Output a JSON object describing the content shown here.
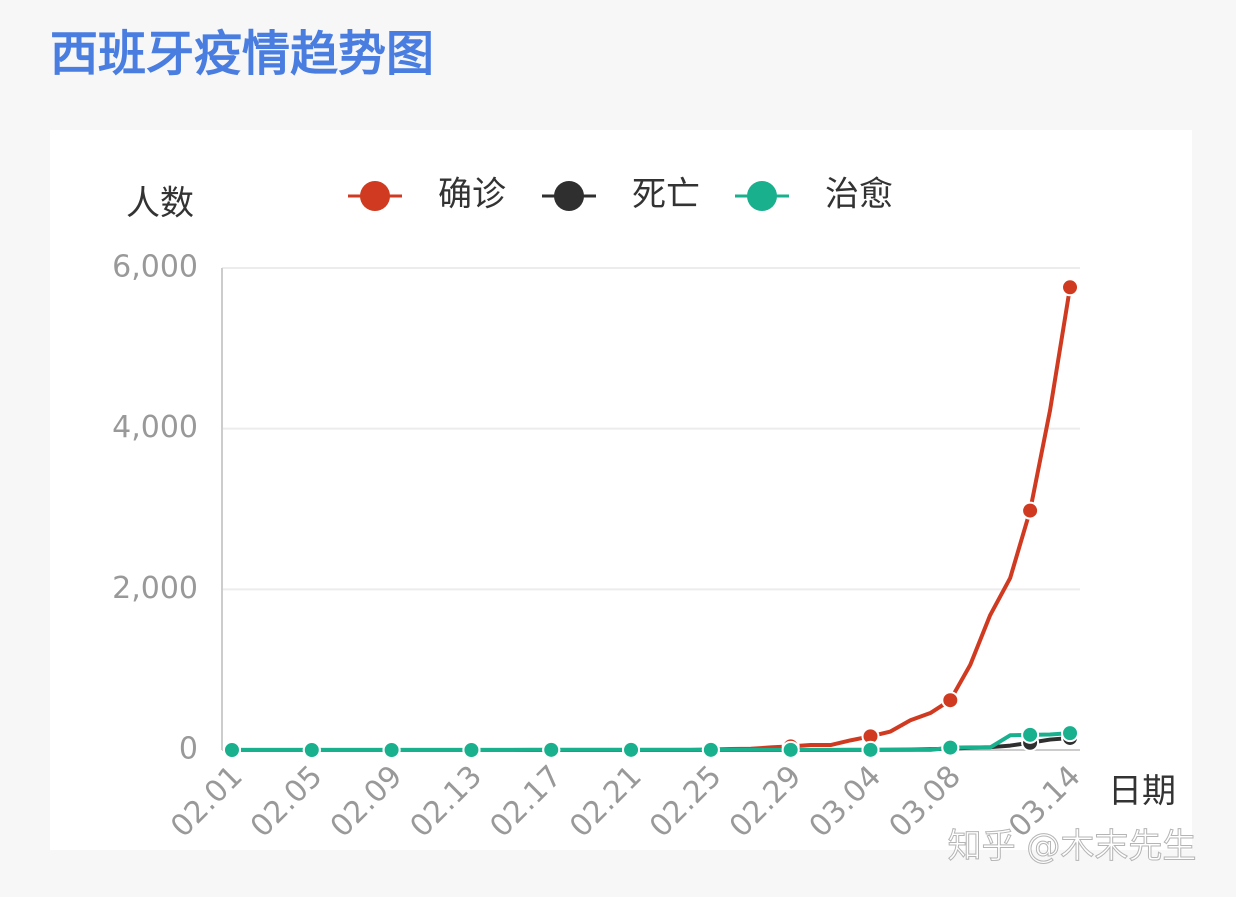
{
  "chart_data": {
    "type": "line",
    "title": "西班牙疫情趋势图",
    "y_axis_label": "人数",
    "x_axis_label": "日期",
    "watermark": "知乎 @木末先生",
    "categories": [
      "02.01",
      null,
      null,
      null,
      "02.05",
      null,
      null,
      null,
      "02.09",
      null,
      null,
      null,
      "02.13",
      null,
      null,
      null,
      "02.17",
      null,
      null,
      null,
      "02.21",
      null,
      null,
      null,
      "02.25",
      null,
      null,
      null,
      "02.29",
      null,
      null,
      null,
      "03.04",
      null,
      null,
      null,
      "03.08",
      null,
      null,
      null,
      null,
      null,
      "03.14"
    ],
    "series": [
      {
        "name": "确诊",
        "color": "#cf3a20",
        "values": [
          1,
          1,
          1,
          1,
          1,
          1,
          1,
          1,
          2,
          2,
          2,
          2,
          2,
          2,
          2,
          2,
          2,
          2,
          2,
          2,
          2,
          2,
          2,
          2,
          6,
          13,
          15,
          32,
          45,
          62,
          62,
          120,
          170,
          230,
          370,
          460,
          620,
          1060,
          1680,
          2140,
          2980,
          4230,
          5760
        ]
      },
      {
        "name": "死亡",
        "color": "#2f2f2f",
        "values": [
          0,
          0,
          0,
          0,
          0,
          0,
          0,
          0,
          0,
          0,
          0,
          0,
          0,
          0,
          0,
          0,
          0,
          0,
          0,
          0,
          0,
          0,
          0,
          0,
          0,
          0,
          0,
          0,
          0,
          0,
          0,
          1,
          2,
          3,
          5,
          10,
          17,
          28,
          35,
          55,
          90,
          130,
          150
        ]
      },
      {
        "name": "治愈",
        "color": "#19b08e",
        "values": [
          0,
          0,
          0,
          0,
          0,
          0,
          0,
          0,
          0,
          0,
          0,
          0,
          0,
          0,
          0,
          2,
          2,
          2,
          2,
          2,
          2,
          2,
          2,
          2,
          2,
          2,
          2,
          2,
          2,
          2,
          2,
          2,
          2,
          2,
          2,
          2,
          30,
          32,
          32,
          183,
          189,
          193,
          210
        ]
      }
    ],
    "ylim": [
      0,
      6000
    ],
    "yticks": [
      0,
      {
        "value": 2000,
        "label": "2,000"
      },
      {
        "value": 4000,
        "label": "4,000"
      },
      {
        "value": 6000,
        "label": "6,000"
      }
    ],
    "grid": true,
    "legend": "top"
  }
}
